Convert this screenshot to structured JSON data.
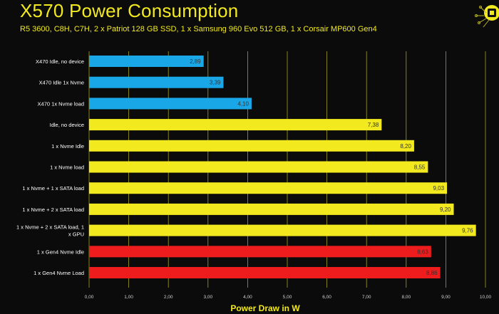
{
  "header": {
    "title": "X570 Power Consumption",
    "subtitle": "R5 3600, C8H, C7H, 2 x Patriot 128 GB SSD, 1 x Samsung 960 Evo 512 GB, 1 x Corsair MP600 Gen4"
  },
  "colors": {
    "blue": "#1aa7e8",
    "yellow": "#f2ea1e",
    "red": "#ee1c1c",
    "grid": "#d8cf2a",
    "label": "#ffffff"
  },
  "chart_data": {
    "type": "bar",
    "orientation": "horizontal",
    "title": "X570 Power Consumption",
    "subtitle": "R5 3600, C8H, C7H, 2 x Patriot 128 GB SSD, 1 x Samsung 960 Evo 512 GB, 1 x Corsair MP600 Gen4",
    "xlabel": "Power Draw in W",
    "ylabel": "",
    "xlim": [
      0,
      10
    ],
    "grid": true,
    "ticks": [
      "0,00",
      "1,00",
      "2,00",
      "3,00",
      "4,00",
      "5,00",
      "6,00",
      "7,00",
      "8,00",
      "9,00",
      "10,00"
    ],
    "categories": [
      "X470 Idle, no device",
      "X470 Idle 1x Nvme",
      "X470 1x Nvme load",
      "Idle, no device",
      "1 x Nvme Idle",
      "1 x Nvme load",
      "1 x Nvme + 1 x SATA load",
      "1 x Nvme + 2 x SATA load",
      "1 x Nvme + 2 x SATA load, 1 x GPU",
      "1 x Gen4 Nvme Idle",
      "1 x Gen4 Nvme Load"
    ],
    "values": [
      2.89,
      3.39,
      4.1,
      7.38,
      8.2,
      8.55,
      9.03,
      9.2,
      9.76,
      8.63,
      8.86
    ],
    "value_labels": [
      "2,89",
      "3,39",
      "4,10",
      "7,38",
      "8,20",
      "8,55",
      "9,03",
      "9,20",
      "9,76",
      "8,63",
      "8,86"
    ],
    "bar_colors": [
      "#1aa7e8",
      "#1aa7e8",
      "#1aa7e8",
      "#f2ea1e",
      "#f2ea1e",
      "#f2ea1e",
      "#f2ea1e",
      "#f2ea1e",
      "#f2ea1e",
      "#ee1c1c",
      "#ee1c1c"
    ],
    "category_lines": [
      [
        "X470 Idle, no device"
      ],
      [
        "X470 Idle 1x Nvme"
      ],
      [
        "X470 1x Nvme load"
      ],
      [
        "Idle, no device"
      ],
      [
        "1 x Nvme Idle"
      ],
      [
        "1 x Nvme load"
      ],
      [
        "1 x Nvme + 1 x SATA load"
      ],
      [
        "1 x Nvme + 2 x SATA load"
      ],
      [
        "1 x Nvme + 2 x SATA load, 1",
        "x GPU"
      ],
      [
        "1 x Gen4 Nvme Idle"
      ],
      [
        "1 x Gen4 Nvme Load"
      ]
    ]
  }
}
